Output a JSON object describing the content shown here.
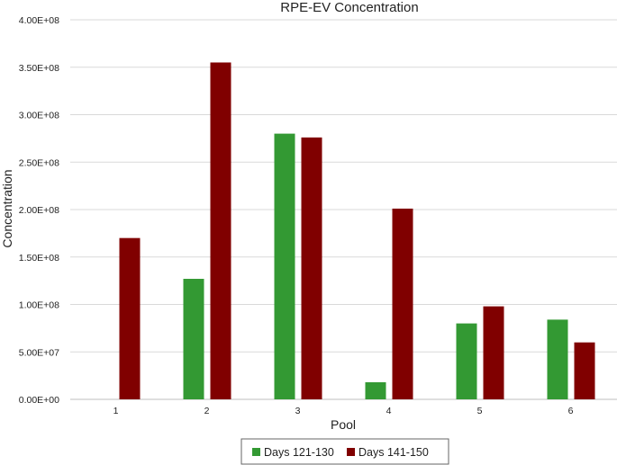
{
  "chart_data": {
    "type": "bar",
    "title": "RPE-EV Concentration",
    "xlabel": "Pool",
    "ylabel": "Concentration",
    "categories": [
      "1",
      "2",
      "3",
      "4",
      "5",
      "6"
    ],
    "ylim": [
      0,
      400000000
    ],
    "yticks": [
      0,
      50000000,
      100000000,
      150000000,
      200000000,
      250000000,
      300000000,
      350000000,
      400000000
    ],
    "ytick_labels": [
      "0.00E+00",
      "5.00E+07",
      "1.00E+08",
      "1.50E+08",
      "2.00E+08",
      "2.50E+08",
      "3.00E+08",
      "3.50E+08",
      "4.00E+08"
    ],
    "grid": true,
    "legend_position": "bottom",
    "series": [
      {
        "name": "Days 121-130",
        "color": "#339933",
        "values": [
          0,
          127000000,
          280000000,
          18000000,
          80000000,
          84000000
        ]
      },
      {
        "name": "Days 141-150",
        "color": "#800000",
        "values": [
          170000000,
          355000000,
          276000000,
          201000000,
          98000000,
          60000000
        ]
      }
    ]
  }
}
